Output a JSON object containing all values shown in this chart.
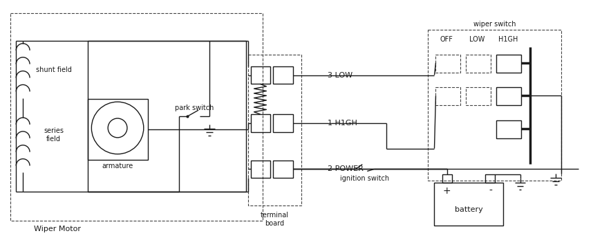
{
  "bg": "#ffffff",
  "lc": "#1a1a1a",
  "fig_w": 8.71,
  "fig_h": 3.57,
  "labels": {
    "shunt_field": "shunt field",
    "series_field": "series\nfield",
    "armature": "armature",
    "park_switch": "park switch",
    "terminal_board": "terminal\nboard",
    "wiper_motor": "Wiper Motor",
    "wiper_switch": "wiper switch",
    "off": "OFF",
    "low": "LOW",
    "high": "H1GH",
    "battery": "battery",
    "plus": "+",
    "minus": "-",
    "3_low": "3 LOW",
    "1_high": "1 H1GH",
    "2_power": "2 POWER",
    "ignition_switch": "ignition switch"
  }
}
